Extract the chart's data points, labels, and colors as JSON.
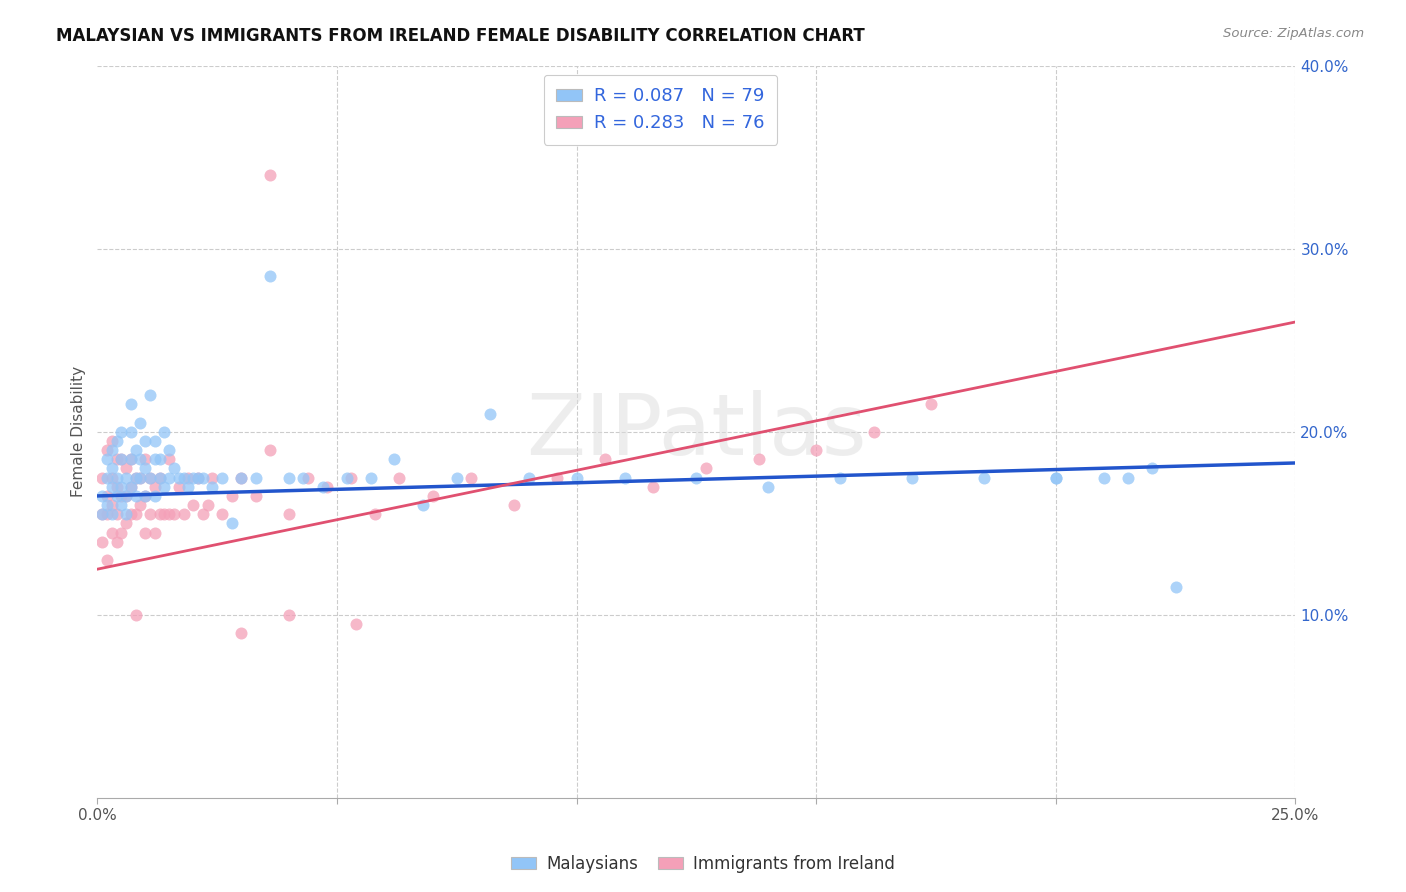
{
  "title": "MALAYSIAN VS IMMIGRANTS FROM IRELAND FEMALE DISABILITY CORRELATION CHART",
  "source": "Source: ZipAtlas.com",
  "ylabel": "Female Disability",
  "watermark": "ZIPatlas",
  "xlim": [
    0.0,
    0.25
  ],
  "ylim": [
    0.0,
    0.4
  ],
  "color_malaysian": "#92c5f7",
  "color_ireland": "#f4a0b8",
  "trendline_color_malaysian": "#2255cc",
  "trendline_color_ireland": "#e05070",
  "legend_r1_text": "R = 0.087   N = 79",
  "legend_r2_text": "R = 0.283   N = 76",
  "legend_color": "#3366dd",
  "malaysian_x": [
    0.001,
    0.001,
    0.002,
    0.002,
    0.002,
    0.003,
    0.003,
    0.003,
    0.003,
    0.004,
    0.004,
    0.004,
    0.005,
    0.005,
    0.005,
    0.005,
    0.006,
    0.006,
    0.006,
    0.007,
    0.007,
    0.007,
    0.007,
    0.008,
    0.008,
    0.008,
    0.009,
    0.009,
    0.009,
    0.01,
    0.01,
    0.01,
    0.011,
    0.011,
    0.012,
    0.012,
    0.012,
    0.013,
    0.013,
    0.014,
    0.014,
    0.015,
    0.015,
    0.016,
    0.017,
    0.018,
    0.019,
    0.02,
    0.021,
    0.022,
    0.024,
    0.026,
    0.028,
    0.03,
    0.033,
    0.036,
    0.04,
    0.043,
    0.047,
    0.052,
    0.057,
    0.062,
    0.068,
    0.075,
    0.082,
    0.09,
    0.1,
    0.11,
    0.125,
    0.14,
    0.155,
    0.17,
    0.185,
    0.2,
    0.215,
    0.22,
    0.225,
    0.2,
    0.21
  ],
  "malaysian_y": [
    0.155,
    0.165,
    0.16,
    0.175,
    0.185,
    0.17,
    0.155,
    0.18,
    0.19,
    0.165,
    0.175,
    0.195,
    0.16,
    0.17,
    0.185,
    0.2,
    0.155,
    0.175,
    0.165,
    0.185,
    0.2,
    0.17,
    0.215,
    0.175,
    0.19,
    0.165,
    0.175,
    0.185,
    0.205,
    0.18,
    0.165,
    0.195,
    0.175,
    0.22,
    0.185,
    0.165,
    0.195,
    0.175,
    0.185,
    0.17,
    0.2,
    0.175,
    0.19,
    0.18,
    0.175,
    0.175,
    0.17,
    0.175,
    0.175,
    0.175,
    0.17,
    0.175,
    0.15,
    0.175,
    0.175,
    0.285,
    0.175,
    0.175,
    0.17,
    0.175,
    0.175,
    0.185,
    0.16,
    0.175,
    0.21,
    0.175,
    0.175,
    0.175,
    0.175,
    0.17,
    0.175,
    0.175,
    0.175,
    0.175,
    0.175,
    0.18,
    0.115,
    0.175,
    0.175
  ],
  "ireland_x": [
    0.001,
    0.001,
    0.001,
    0.002,
    0.002,
    0.002,
    0.002,
    0.003,
    0.003,
    0.003,
    0.003,
    0.004,
    0.004,
    0.004,
    0.004,
    0.005,
    0.005,
    0.005,
    0.006,
    0.006,
    0.006,
    0.007,
    0.007,
    0.007,
    0.008,
    0.008,
    0.008,
    0.009,
    0.009,
    0.01,
    0.01,
    0.01,
    0.011,
    0.011,
    0.012,
    0.012,
    0.013,
    0.013,
    0.014,
    0.015,
    0.015,
    0.016,
    0.017,
    0.018,
    0.019,
    0.02,
    0.021,
    0.022,
    0.023,
    0.024,
    0.026,
    0.028,
    0.03,
    0.033,
    0.036,
    0.04,
    0.044,
    0.048,
    0.053,
    0.058,
    0.063,
    0.07,
    0.078,
    0.087,
    0.096,
    0.106,
    0.116,
    0.127,
    0.138,
    0.15,
    0.162,
    0.174,
    0.036,
    0.054,
    0.04,
    0.03
  ],
  "ireland_y": [
    0.14,
    0.155,
    0.175,
    0.13,
    0.155,
    0.165,
    0.19,
    0.145,
    0.16,
    0.175,
    0.195,
    0.14,
    0.155,
    0.17,
    0.185,
    0.145,
    0.165,
    0.185,
    0.15,
    0.165,
    0.18,
    0.155,
    0.17,
    0.185,
    0.155,
    0.175,
    0.1,
    0.16,
    0.175,
    0.145,
    0.165,
    0.185,
    0.155,
    0.175,
    0.145,
    0.17,
    0.155,
    0.175,
    0.155,
    0.155,
    0.185,
    0.155,
    0.17,
    0.155,
    0.175,
    0.16,
    0.175,
    0.155,
    0.16,
    0.175,
    0.155,
    0.165,
    0.175,
    0.165,
    0.19,
    0.155,
    0.175,
    0.17,
    0.175,
    0.155,
    0.175,
    0.165,
    0.175,
    0.16,
    0.175,
    0.185,
    0.17,
    0.18,
    0.185,
    0.19,
    0.2,
    0.215,
    0.34,
    0.095,
    0.1,
    0.09
  ]
}
